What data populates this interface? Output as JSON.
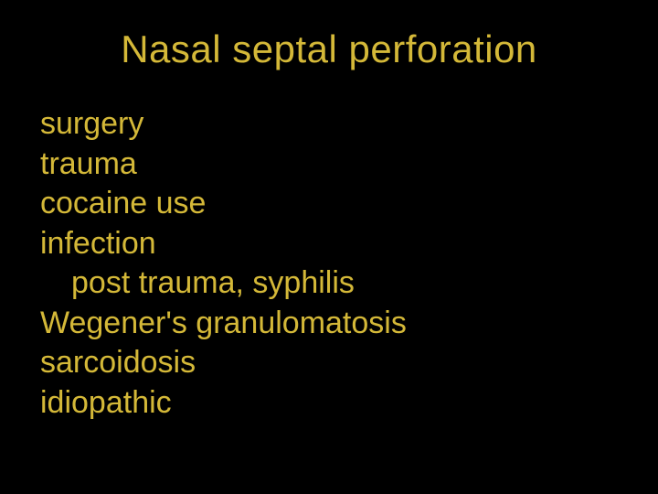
{
  "slide": {
    "background_color": "#000000",
    "text_color": "#d4b838",
    "title": "Nasal septal perforation",
    "title_fontsize": 42,
    "body_fontsize": 34,
    "font_family": "Comic Sans MS",
    "lines": [
      {
        "text": "surgery",
        "indent": false
      },
      {
        "text": "trauma",
        "indent": false
      },
      {
        "text": "cocaine use",
        "indent": false
      },
      {
        "text": "infection",
        "indent": false
      },
      {
        "text": "post trauma, syphilis",
        "indent": true
      },
      {
        "text": "Wegener's granulomatosis",
        "indent": false
      },
      {
        "text": "sarcoidosis",
        "indent": false
      },
      {
        "text": "idiopathic",
        "indent": false
      }
    ]
  }
}
